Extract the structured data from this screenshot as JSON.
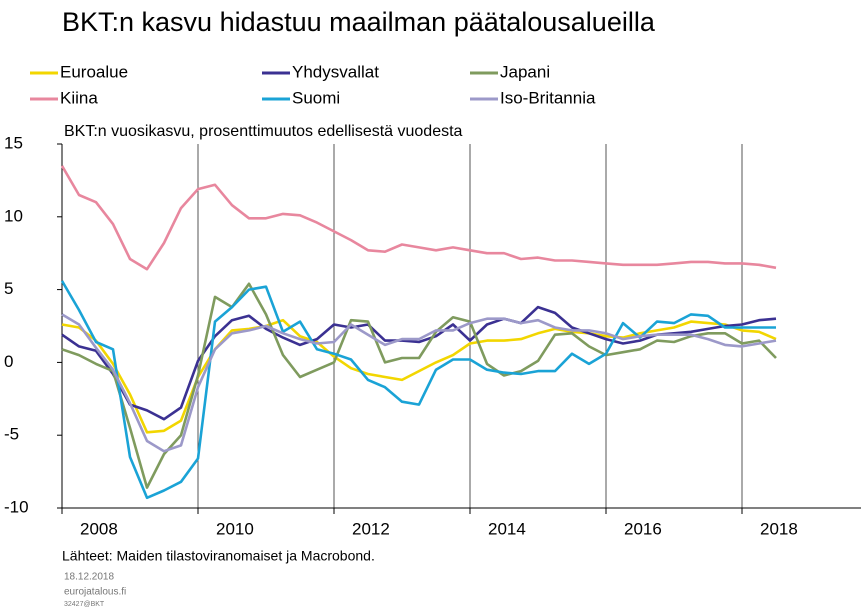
{
  "chart_data": {
    "type": "line",
    "title": "BKT:n kasvu hidastuu maailman päätalousalueilla",
    "subtitle": "BKT:n vuosikasvu, prosenttimuutos edellisestä vuodesta",
    "source": "Lähteet: Maiden tilastoviranomaiset ja Macrobond.",
    "date": "18.12.2018",
    "site": "eurojatalous.fi",
    "code": "32427@BKT",
    "x": [
      2008,
      2008.25,
      2008.5,
      2008.75,
      2009,
      2009.25,
      2009.5,
      2009.75,
      2010,
      2010.25,
      2010.5,
      2010.75,
      2011,
      2011.25,
      2011.5,
      2011.75,
      2012,
      2012.25,
      2012.5,
      2012.75,
      2013,
      2013.25,
      2013.5,
      2013.75,
      2014,
      2014.25,
      2014.5,
      2014.75,
      2015,
      2015.25,
      2015.5,
      2015.75,
      2016,
      2016.25,
      2016.5,
      2016.75,
      2017,
      2017.25,
      2017.5,
      2017.75,
      2018,
      2018.25,
      2018.5
    ],
    "xlim": [
      2008,
      2019.75
    ],
    "xticks": [
      2008,
      2010,
      2012,
      2014,
      2016,
      2018
    ],
    "ylim": [
      -10,
      15
    ],
    "yticks": [
      -10,
      -5,
      0,
      5,
      10,
      15
    ],
    "grid": "x",
    "series": [
      {
        "name": "Euroalue",
        "color": "#f2d600",
        "values": [
          2.6,
          2.4,
          1.5,
          -0.1,
          -2.2,
          -4.8,
          -4.7,
          -4.0,
          -1.0,
          0.9,
          2.2,
          2.3,
          2.5,
          2.9,
          1.8,
          1.4,
          0.4,
          -0.4,
          -0.8,
          -1.0,
          -1.2,
          -0.6,
          0.0,
          0.5,
          1.3,
          1.5,
          1.5,
          1.6,
          2.0,
          2.3,
          2.1,
          2.0,
          1.8,
          1.7,
          2.0,
          2.2,
          2.4,
          2.8,
          2.7,
          2.6,
          2.2,
          2.1,
          1.6
        ]
      },
      {
        "name": "Yhdysvallat",
        "color": "#3b3192",
        "values": [
          1.9,
          1.1,
          0.8,
          -0.8,
          -2.9,
          -3.3,
          -3.9,
          -3.1,
          0.1,
          1.8,
          2.9,
          3.2,
          2.3,
          1.7,
          1.2,
          1.6,
          2.6,
          2.4,
          2.6,
          1.5,
          1.5,
          1.4,
          1.8,
          2.6,
          1.5,
          2.6,
          3.0,
          2.7,
          3.8,
          3.4,
          2.4,
          2.0,
          1.6,
          1.3,
          1.5,
          1.9,
          2.0,
          2.1,
          2.3,
          2.5,
          2.6,
          2.9,
          3.0
        ]
      },
      {
        "name": "Japani",
        "color": "#7f9b5e",
        "values": [
          0.9,
          0.5,
          -0.1,
          -0.6,
          -4.5,
          -8.6,
          -6.3,
          -5.0,
          -0.9,
          4.5,
          3.8,
          5.4,
          3.3,
          0.5,
          -1.0,
          -0.5,
          0.0,
          2.9,
          2.8,
          0.0,
          0.3,
          0.3,
          2.1,
          3.1,
          2.8,
          -0.1,
          -0.9,
          -0.6,
          0.1,
          1.9,
          2.0,
          1.1,
          0.5,
          0.7,
          0.9,
          1.5,
          1.4,
          1.8,
          2.0,
          2.0,
          1.3,
          1.5,
          0.3
        ]
      },
      {
        "name": "Kiina",
        "color": "#e8879e",
        "values": [
          13.5,
          11.5,
          11,
          9.5,
          7.1,
          6.4,
          8.2,
          10.6,
          11.9,
          12.2,
          10.8,
          9.9,
          9.9,
          10.2,
          10.1,
          9.6,
          9.0,
          8.4,
          7.7,
          7.6,
          8.1,
          7.9,
          7.7,
          7.9,
          7.7,
          7.5,
          7.5,
          7.1,
          7.2,
          7.0,
          7.0,
          6.9,
          6.8,
          6.7,
          6.7,
          6.7,
          6.8,
          6.9,
          6.9,
          6.8,
          6.8,
          6.7,
          6.5
        ]
      },
      {
        "name": "Suomi",
        "color": "#1aa3d6",
        "values": [
          5.6,
          3.6,
          1.4,
          0.9,
          -6.5,
          -9.3,
          -8.8,
          -8.2,
          -6.6,
          2.8,
          3.8,
          5.0,
          5.2,
          2.1,
          2.8,
          0.9,
          0.6,
          0.2,
          -1.2,
          -1.7,
          -2.7,
          -2.9,
          -0.5,
          0.2,
          0.2,
          -0.5,
          -0.7,
          -0.8,
          -0.6,
          -0.6,
          0.6,
          -0.1,
          0.6,
          2.7,
          1.7,
          2.8,
          2.7,
          3.3,
          3.2,
          2.4,
          2.4,
          2.4,
          2.4
        ]
      },
      {
        "name": "Iso-Britannia",
        "color": "#9c99c9",
        "values": [
          3.3,
          2.6,
          1.0,
          -0.5,
          -2.8,
          -5.4,
          -6.1,
          -5.7,
          -1.7,
          0.9,
          2.0,
          2.2,
          2.5,
          2.0,
          1.6,
          1.3,
          1.4,
          2.6,
          1.9,
          1.2,
          1.6,
          1.6,
          2.2,
          2.2,
          2.7,
          3.0,
          3.0,
          2.7,
          2.9,
          2.4,
          2.2,
          2.2,
          2.0,
          1.6,
          1.8,
          1.9,
          1.9,
          1.9,
          1.6,
          1.2,
          1.1,
          1.3,
          1.5
        ]
      }
    ]
  }
}
